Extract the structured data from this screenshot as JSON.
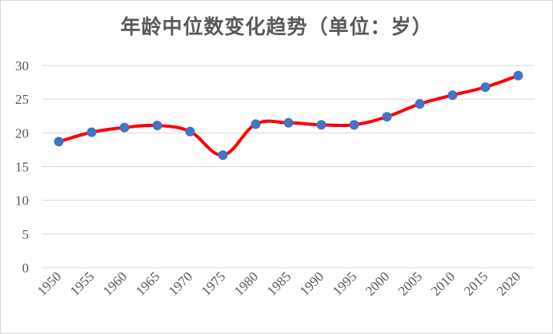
{
  "chart_data": {
    "type": "line",
    "title": "年龄中位数变化趋势（单位：岁）",
    "xlabel": "",
    "ylabel": "",
    "categories": [
      "1950",
      "1955",
      "1960",
      "1965",
      "1970",
      "1975",
      "1980",
      "1985",
      "1990",
      "1995",
      "2000",
      "2005",
      "2010",
      "2015",
      "2020"
    ],
    "series": [
      {
        "values": [
          18.7,
          20.1,
          20.8,
          21.1,
          20.2,
          16.7,
          21.3,
          21.5,
          21.2,
          21.2,
          22.4,
          24.3,
          25.6,
          26.8,
          28.5
        ]
      }
    ],
    "yticks": [
      "0",
      "5",
      "10",
      "15",
      "20",
      "25",
      "30"
    ],
    "ylim": [
      0,
      30
    ],
    "grid": true,
    "legend": "none",
    "smooth": true,
    "colors": {
      "line": "#ff0000",
      "marker": "#4472c4",
      "grid": "#d9d9d9",
      "text": "#595959"
    }
  }
}
